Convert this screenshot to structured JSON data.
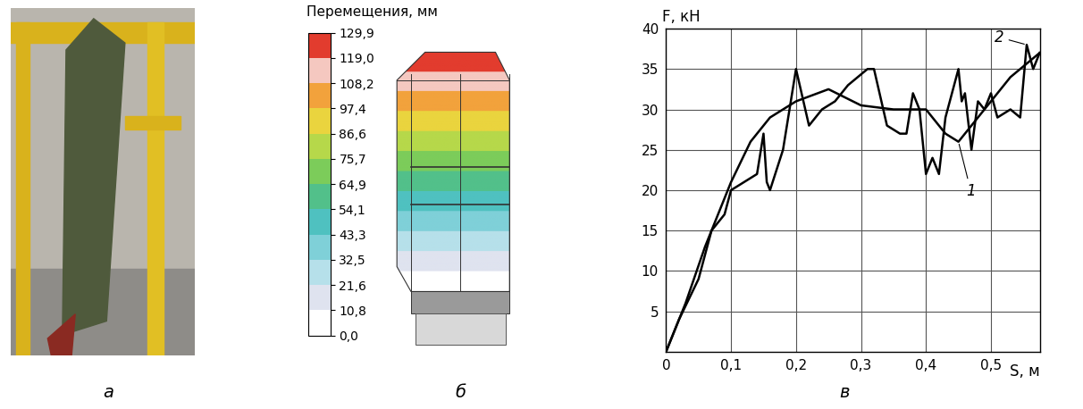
{
  "panel_labels": [
    "а",
    "б",
    "в"
  ],
  "colorbar": {
    "title": "Перемещения, мм",
    "ticks": [
      {
        "value": 0.0,
        "label": "0,0"
      },
      {
        "value": 10.8,
        "label": "10,8"
      },
      {
        "value": 21.6,
        "label": "21,6"
      },
      {
        "value": 32.5,
        "label": "32,5"
      },
      {
        "value": 43.3,
        "label": "43,3"
      },
      {
        "value": 54.1,
        "label": "54,1"
      },
      {
        "value": 64.9,
        "label": "64,9"
      },
      {
        "value": 75.7,
        "label": "75,7"
      },
      {
        "value": 86.6,
        "label": "86,6"
      },
      {
        "value": 97.4,
        "label": "97,4"
      },
      {
        "value": 108.2,
        "label": "108,2"
      },
      {
        "value": 119.0,
        "label": "119,0"
      },
      {
        "value": 129.9,
        "label": "129,9"
      }
    ],
    "colors": [
      "#ffffff",
      "#dfe3ef",
      "#b6e0ea",
      "#7fd0d8",
      "#4fc1c0",
      "#52c08a",
      "#7ccc5a",
      "#b6d84a",
      "#ead43e",
      "#f2a23c",
      "#f5c8c0",
      "#e23c2e"
    ]
  },
  "chart_data": {
    "type": "line",
    "x_label": "S, м",
    "y_label": "F, кН",
    "xlim": [
      0,
      0.575
    ],
    "ylim": [
      0,
      40
    ],
    "xticks": [
      0,
      {
        "value": 0.1,
        "label": "0,1"
      },
      {
        "value": 0.2,
        "label": "0,2"
      },
      {
        "value": 0.3,
        "label": "0,3"
      },
      {
        "value": 0.4,
        "label": "0,4"
      },
      {
        "value": 0.5,
        "label": "0,5"
      }
    ],
    "yticks": [
      5,
      10,
      15,
      20,
      25,
      30,
      35,
      40
    ],
    "grid": true,
    "series": [
      {
        "color": "#000000",
        "x": [
          0,
          0.03,
          0.06,
          0.1,
          0.13,
          0.16,
          0.2,
          0.25,
          0.3,
          0.35,
          0.4,
          0.43,
          0.45,
          0.48,
          0.5,
          0.53,
          0.56,
          0.575
        ],
        "values": [
          0,
          6,
          13,
          21,
          26,
          29,
          31,
          32.5,
          30.5,
          30,
          30,
          27,
          26,
          29,
          31,
          34,
          36,
          37
        ]
      },
      {
        "color": "#000000",
        "x": [
          0,
          0.02,
          0.05,
          0.07,
          0.09,
          0.1,
          0.12,
          0.14,
          0.15,
          0.155,
          0.16,
          0.18,
          0.2,
          0.22,
          0.24,
          0.26,
          0.28,
          0.31,
          0.32,
          0.34,
          0.36,
          0.37,
          0.38,
          0.39,
          0.4,
          0.41,
          0.42,
          0.43,
          0.45,
          0.455,
          0.46,
          0.47,
          0.48,
          0.49,
          0.5,
          0.51,
          0.53,
          0.545,
          0.555,
          0.565,
          0.575
        ],
        "values": [
          0,
          4,
          9,
          15,
          17,
          20,
          21,
          22,
          27,
          21,
          20,
          25,
          35,
          28,
          30,
          31,
          33,
          35,
          35,
          28,
          27,
          27,
          32,
          30,
          22,
          24,
          22,
          29,
          35,
          31,
          32,
          25,
          31,
          30,
          32,
          29,
          30,
          29,
          38,
          35,
          37
        ]
      }
    ],
    "annotations": [
      {
        "text": "1",
        "x": 0.45,
        "y": 26
      },
      {
        "text": "2",
        "x": 0.555,
        "y": 38
      }
    ]
  }
}
